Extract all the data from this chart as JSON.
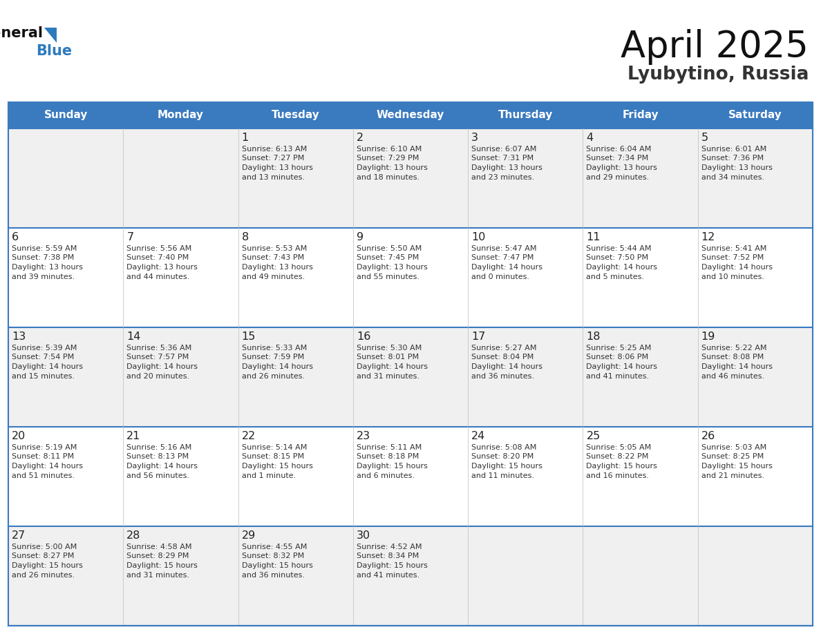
{
  "title": "April 2025",
  "subtitle": "Lyubytino, Russia",
  "days_of_week": [
    "Sunday",
    "Monday",
    "Tuesday",
    "Wednesday",
    "Thursday",
    "Friday",
    "Saturday"
  ],
  "header_bg": "#3a7abf",
  "header_text": "#ffffff",
  "row_bg_odd": "#f0f0f0",
  "row_bg_even": "#ffffff",
  "cell_border": "#cccccc",
  "day_number_color": "#222222",
  "info_text_color": "#333333",
  "title_color": "#111111",
  "subtitle_color": "#333333",
  "logo_general_color": "#111111",
  "logo_blue_color": "#2e7abf",
  "divider_color": "#3a7abf",
  "calendar_data": [
    {
      "day": 1,
      "col": 2,
      "row": 0,
      "sunrise": "6:13 AM",
      "sunset": "7:27 PM",
      "daylight_h": "13 hours",
      "daylight_m": "and 13 minutes."
    },
    {
      "day": 2,
      "col": 3,
      "row": 0,
      "sunrise": "6:10 AM",
      "sunset": "7:29 PM",
      "daylight_h": "13 hours",
      "daylight_m": "and 18 minutes."
    },
    {
      "day": 3,
      "col": 4,
      "row": 0,
      "sunrise": "6:07 AM",
      "sunset": "7:31 PM",
      "daylight_h": "13 hours",
      "daylight_m": "and 23 minutes."
    },
    {
      "day": 4,
      "col": 5,
      "row": 0,
      "sunrise": "6:04 AM",
      "sunset": "7:34 PM",
      "daylight_h": "13 hours",
      "daylight_m": "and 29 minutes."
    },
    {
      "day": 5,
      "col": 6,
      "row": 0,
      "sunrise": "6:01 AM",
      "sunset": "7:36 PM",
      "daylight_h": "13 hours",
      "daylight_m": "and 34 minutes."
    },
    {
      "day": 6,
      "col": 0,
      "row": 1,
      "sunrise": "5:59 AM",
      "sunset": "7:38 PM",
      "daylight_h": "13 hours",
      "daylight_m": "and 39 minutes."
    },
    {
      "day": 7,
      "col": 1,
      "row": 1,
      "sunrise": "5:56 AM",
      "sunset": "7:40 PM",
      "daylight_h": "13 hours",
      "daylight_m": "and 44 minutes."
    },
    {
      "day": 8,
      "col": 2,
      "row": 1,
      "sunrise": "5:53 AM",
      "sunset": "7:43 PM",
      "daylight_h": "13 hours",
      "daylight_m": "and 49 minutes."
    },
    {
      "day": 9,
      "col": 3,
      "row": 1,
      "sunrise": "5:50 AM",
      "sunset": "7:45 PM",
      "daylight_h": "13 hours",
      "daylight_m": "and 55 minutes."
    },
    {
      "day": 10,
      "col": 4,
      "row": 1,
      "sunrise": "5:47 AM",
      "sunset": "7:47 PM",
      "daylight_h": "14 hours",
      "daylight_m": "and 0 minutes."
    },
    {
      "day": 11,
      "col": 5,
      "row": 1,
      "sunrise": "5:44 AM",
      "sunset": "7:50 PM",
      "daylight_h": "14 hours",
      "daylight_m": "and 5 minutes."
    },
    {
      "day": 12,
      "col": 6,
      "row": 1,
      "sunrise": "5:41 AM",
      "sunset": "7:52 PM",
      "daylight_h": "14 hours",
      "daylight_m": "and 10 minutes."
    },
    {
      "day": 13,
      "col": 0,
      "row": 2,
      "sunrise": "5:39 AM",
      "sunset": "7:54 PM",
      "daylight_h": "14 hours",
      "daylight_m": "and 15 minutes."
    },
    {
      "day": 14,
      "col": 1,
      "row": 2,
      "sunrise": "5:36 AM",
      "sunset": "7:57 PM",
      "daylight_h": "14 hours",
      "daylight_m": "and 20 minutes."
    },
    {
      "day": 15,
      "col": 2,
      "row": 2,
      "sunrise": "5:33 AM",
      "sunset": "7:59 PM",
      "daylight_h": "14 hours",
      "daylight_m": "and 26 minutes."
    },
    {
      "day": 16,
      "col": 3,
      "row": 2,
      "sunrise": "5:30 AM",
      "sunset": "8:01 PM",
      "daylight_h": "14 hours",
      "daylight_m": "and 31 minutes."
    },
    {
      "day": 17,
      "col": 4,
      "row": 2,
      "sunrise": "5:27 AM",
      "sunset": "8:04 PM",
      "daylight_h": "14 hours",
      "daylight_m": "and 36 minutes."
    },
    {
      "day": 18,
      "col": 5,
      "row": 2,
      "sunrise": "5:25 AM",
      "sunset": "8:06 PM",
      "daylight_h": "14 hours",
      "daylight_m": "and 41 minutes."
    },
    {
      "day": 19,
      "col": 6,
      "row": 2,
      "sunrise": "5:22 AM",
      "sunset": "8:08 PM",
      "daylight_h": "14 hours",
      "daylight_m": "and 46 minutes."
    },
    {
      "day": 20,
      "col": 0,
      "row": 3,
      "sunrise": "5:19 AM",
      "sunset": "8:11 PM",
      "daylight_h": "14 hours",
      "daylight_m": "and 51 minutes."
    },
    {
      "day": 21,
      "col": 1,
      "row": 3,
      "sunrise": "5:16 AM",
      "sunset": "8:13 PM",
      "daylight_h": "14 hours",
      "daylight_m": "and 56 minutes."
    },
    {
      "day": 22,
      "col": 2,
      "row": 3,
      "sunrise": "5:14 AM",
      "sunset": "8:15 PM",
      "daylight_h": "15 hours",
      "daylight_m": "and 1 minute."
    },
    {
      "day": 23,
      "col": 3,
      "row": 3,
      "sunrise": "5:11 AM",
      "sunset": "8:18 PM",
      "daylight_h": "15 hours",
      "daylight_m": "and 6 minutes."
    },
    {
      "day": 24,
      "col": 4,
      "row": 3,
      "sunrise": "5:08 AM",
      "sunset": "8:20 PM",
      "daylight_h": "15 hours",
      "daylight_m": "and 11 minutes."
    },
    {
      "day": 25,
      "col": 5,
      "row": 3,
      "sunrise": "5:05 AM",
      "sunset": "8:22 PM",
      "daylight_h": "15 hours",
      "daylight_m": "and 16 minutes."
    },
    {
      "day": 26,
      "col": 6,
      "row": 3,
      "sunrise": "5:03 AM",
      "sunset": "8:25 PM",
      "daylight_h": "15 hours",
      "daylight_m": "and 21 minutes."
    },
    {
      "day": 27,
      "col": 0,
      "row": 4,
      "sunrise": "5:00 AM",
      "sunset": "8:27 PM",
      "daylight_h": "15 hours",
      "daylight_m": "and 26 minutes."
    },
    {
      "day": 28,
      "col": 1,
      "row": 4,
      "sunrise": "4:58 AM",
      "sunset": "8:29 PM",
      "daylight_h": "15 hours",
      "daylight_m": "and 31 minutes."
    },
    {
      "day": 29,
      "col": 2,
      "row": 4,
      "sunrise": "4:55 AM",
      "sunset": "8:32 PM",
      "daylight_h": "15 hours",
      "daylight_m": "and 36 minutes."
    },
    {
      "day": 30,
      "col": 3,
      "row": 4,
      "sunrise": "4:52 AM",
      "sunset": "8:34 PM",
      "daylight_h": "15 hours",
      "daylight_m": "and 41 minutes."
    }
  ]
}
